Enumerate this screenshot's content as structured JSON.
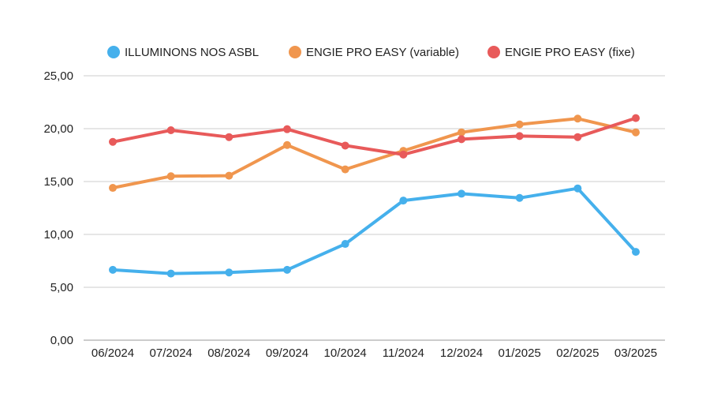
{
  "chart_data": {
    "type": "line",
    "title": "",
    "xlabel": "",
    "ylabel": "",
    "categories": [
      "06/2024",
      "07/2024",
      "08/2024",
      "09/2024",
      "10/2024",
      "11/2024",
      "12/2024",
      "01/2025",
      "02/2025",
      "03/2025"
    ],
    "ylim": [
      0,
      25
    ],
    "yticks": [
      "0,00",
      "5,00",
      "10,00",
      "15,00",
      "20,00",
      "25,00"
    ],
    "ytick_values": [
      0,
      5,
      10,
      15,
      20,
      25
    ],
    "grid": true,
    "legend_position": "top",
    "series": [
      {
        "name": "ILLUMINONS NOS ASBL",
        "color": "#45b0ec",
        "values": [
          6.65,
          6.3,
          6.4,
          6.65,
          9.1,
          13.2,
          13.85,
          13.45,
          14.35,
          8.35
        ]
      },
      {
        "name": "ENGIE PRO EASY (variable)",
        "color": "#f0964e",
        "values": [
          14.4,
          15.5,
          15.55,
          18.45,
          16.15,
          17.9,
          19.65,
          20.4,
          20.95,
          19.65
        ]
      },
      {
        "name": "ENGIE PRO EASY (fixe)",
        "color": "#e85a5a",
        "values": [
          18.75,
          19.85,
          19.2,
          19.95,
          18.4,
          17.55,
          19.0,
          19.3,
          19.2,
          21.0
        ]
      }
    ]
  }
}
